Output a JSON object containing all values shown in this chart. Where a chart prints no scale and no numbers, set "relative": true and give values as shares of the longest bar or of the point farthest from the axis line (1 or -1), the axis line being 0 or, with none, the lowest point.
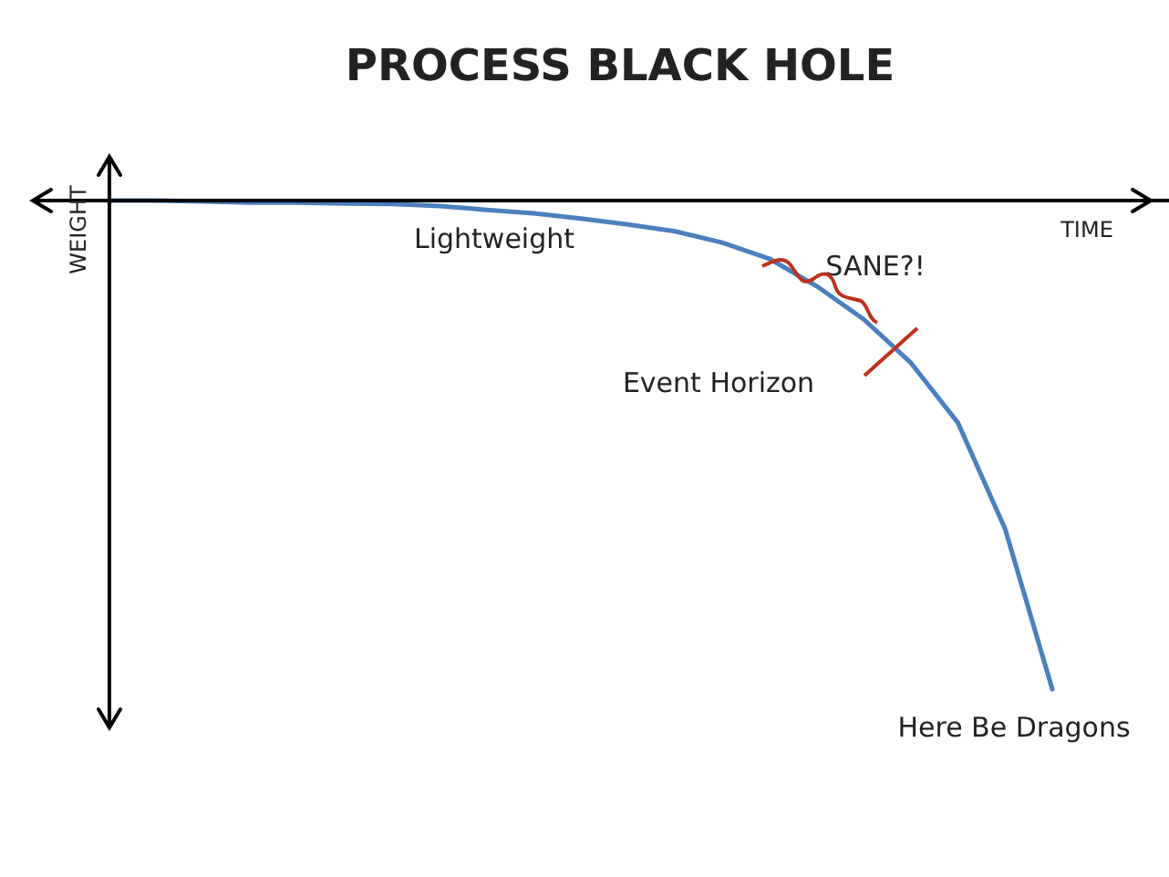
{
  "chart_data": {
    "type": "line",
    "title": "PROCESS BLACK HOLE",
    "xlabel": "TIME",
    "ylabel": "WEIGHT",
    "relative": true,
    "categories": [
      null,
      null,
      null,
      null,
      null,
      null,
      null,
      null,
      null,
      null,
      null,
      null,
      null,
      null,
      null,
      null,
      null,
      null,
      null,
      null,
      null
    ],
    "series": [
      {
        "color": "#4a80bd",
        "values": [
          0,
          0,
          -0.002,
          -0.004,
          -0.004,
          -0.006,
          -0.007,
          -0.011,
          -0.019,
          -0.026,
          -0.037,
          -0.049,
          -0.063,
          -0.086,
          -0.119,
          -0.175,
          -0.243,
          -0.332,
          -0.455,
          -0.672,
          -1
        ]
      }
    ],
    "annotations": [
      "Lightweight",
      "SANE?!",
      "Event Horizon",
      "Here Be Dragons"
    ]
  }
}
